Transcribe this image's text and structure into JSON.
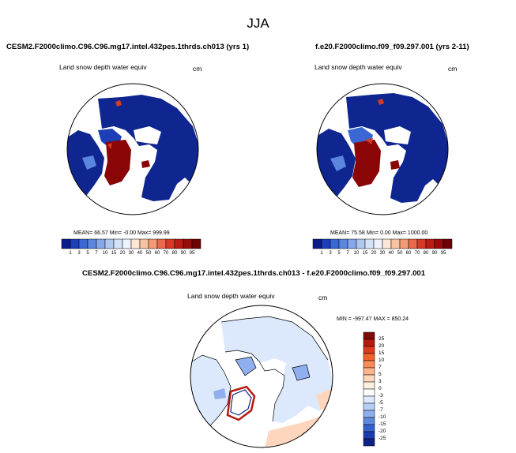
{
  "main_title": "JJA",
  "panel_left": {
    "case_title": "CESM2.F2000climo.C96.C96.mg17.intel.432pes.1thrds.ch013 (yrs 1)",
    "field_label": "Land snow depth water equiv",
    "units": "cm",
    "stats": {
      "mean_label": "MEAN=",
      "mean": "66.57",
      "min_label": "Min=",
      "min": "-0.00",
      "max_label": "Max=",
      "max": "999.99"
    }
  },
  "panel_right": {
    "case_title": "f.e20.F2000climo.f09_f09.297.001 (yrs 2-11)",
    "field_label": "Land snow depth water equiv",
    "units": "cm",
    "stats": {
      "mean_label": "MEAN=",
      "mean": "75.58",
      "min_label": "Min=",
      "min": "0.00",
      "max_label": "Max=",
      "max": "1000.00"
    }
  },
  "panel_diff": {
    "case_title": "CESM2.F2000climo.C96.C96.mg17.intel.432pes.1thrds.ch013 - f.e20.F2000climo.f09_f09.297.001",
    "field_label": "Land snow depth water equiv",
    "units": "cm",
    "minmax": "MIN = -997.47 MAX = 850.24"
  },
  "chart_data": [
    {
      "type": "heatmap",
      "projection": "polar-stereographic-north",
      "title": "CESM2.F2000climo.C96.C96.mg17.intel.432pes.1thrds.ch013 (yrs 1)",
      "field": "Land snow depth water equiv",
      "units": "cm",
      "stats": {
        "mean": 66.57,
        "min": -0.0,
        "max": 999.99
      },
      "colorbar": {
        "orientation": "horizontal",
        "levels": [
          1,
          3,
          5,
          7,
          10,
          15,
          20,
          30,
          40,
          50,
          60,
          70,
          80,
          90,
          95
        ],
        "colors": [
          "#0a1b8a",
          "#1c3fb8",
          "#3a67d4",
          "#5b86e0",
          "#86a7ea",
          "#b0c7f0",
          "#d4e2f7",
          "#eef3fb",
          "#fde6d6",
          "#f8c3a2",
          "#f39b76",
          "#e8694b",
          "#d43b27",
          "#b81d14",
          "#970d0c",
          "#6e0204"
        ]
      }
    },
    {
      "type": "heatmap",
      "projection": "polar-stereographic-north",
      "title": "f.e20.F2000climo.f09_f09.297.001 (yrs 2-11)",
      "field": "Land snow depth water equiv",
      "units": "cm",
      "stats": {
        "mean": 75.58,
        "min": 0.0,
        "max": 1000.0
      },
      "colorbar": {
        "orientation": "horizontal",
        "levels": [
          1,
          3,
          5,
          7,
          10,
          15,
          20,
          30,
          40,
          50,
          60,
          70,
          80,
          90,
          95
        ],
        "colors": [
          "#0a1b8a",
          "#1c3fb8",
          "#3a67d4",
          "#5b86e0",
          "#86a7ea",
          "#b0c7f0",
          "#d4e2f7",
          "#eef3fb",
          "#fde6d6",
          "#f8c3a2",
          "#f39b76",
          "#e8694b",
          "#d43b27",
          "#b81d14",
          "#970d0c",
          "#6e0204"
        ]
      }
    },
    {
      "type": "heatmap",
      "projection": "polar-stereographic-north",
      "title": "CESM2.F2000climo.C96.C96.mg17.intel.432pes.1thrds.ch013 - f.e20.F2000climo.f09_f09.297.001",
      "field": "Land snow depth water equiv",
      "units": "cm",
      "stats": {
        "min": -997.47,
        "max": 850.24
      },
      "colorbar": {
        "orientation": "vertical",
        "levels": [
          25,
          20,
          15,
          10,
          7,
          5,
          3,
          0,
          -3,
          -5,
          -7,
          -10,
          -15,
          -20,
          -25
        ],
        "colors": [
          "#7f0a06",
          "#b8190f",
          "#de3a1e",
          "#f4612c",
          "#fb8c57",
          "#fdb58b",
          "#fdd6bd",
          "#fdeee2",
          "#ffffff",
          "#dce8fb",
          "#b7cdf5",
          "#8fafee",
          "#5f89e0",
          "#3561cd",
          "#1a3cae",
          "#0d2386"
        ]
      }
    }
  ]
}
